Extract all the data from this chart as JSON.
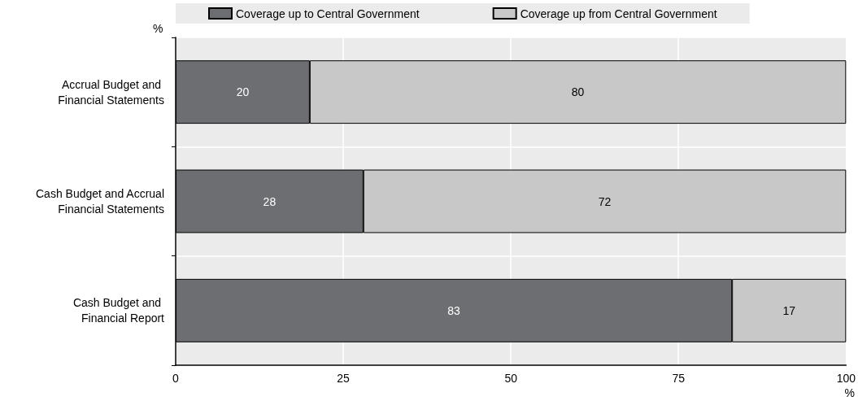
{
  "chart_data": {
    "type": "bar",
    "orientation": "horizontal",
    "stacked": true,
    "categories": [
      "Accrual Budget and Financial Statements",
      "Cash Budget and Accrual Financial Statements",
      "Cash Budget and Financial Report"
    ],
    "series": [
      {
        "name": "Coverage up to Central Government",
        "color": "#6d6e71",
        "values": [
          20,
          28,
          83
        ]
      },
      {
        "name": "Coverage up from Central Government",
        "color": "#c8c8c8",
        "values": [
          80,
          72,
          17
        ]
      }
    ],
    "xlim": [
      0,
      100
    ],
    "xticks": [
      0,
      25,
      50,
      75,
      100
    ],
    "xlabel": "%",
    "ylabel": "%",
    "grid": true,
    "legend": "top",
    "data_labels": true
  }
}
